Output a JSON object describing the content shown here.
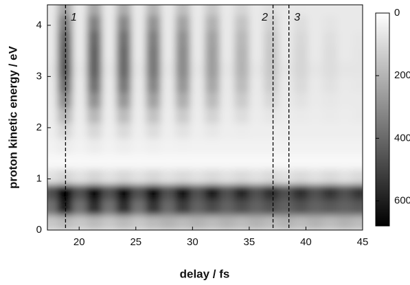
{
  "chart_data": {
    "type": "heatmap",
    "xlabel": "delay / fs",
    "ylabel": "proton kinetic energy / eV",
    "x": [
      17.5,
      18.8,
      20.1,
      21.4,
      22.7,
      24.0,
      25.3,
      26.6,
      27.9,
      29.2,
      30.5,
      31.8,
      33.1,
      34.4,
      35.7,
      37.0,
      38.3,
      39.6,
      40.9,
      42.2,
      43.5,
      44.8
    ],
    "y": [
      0.15,
      0.45,
      0.75,
      1.05,
      1.35,
      1.65,
      1.95,
      2.25,
      2.55,
      2.85,
      3.15,
      3.45,
      3.75,
      4.05,
      4.35
    ],
    "z": [
      [
        150,
        180,
        150,
        180,
        150,
        180,
        150,
        180,
        200,
        180,
        200,
        180,
        200,
        180,
        200,
        180,
        200,
        180,
        200,
        180,
        200,
        180
      ],
      [
        380,
        600,
        380,
        560,
        380,
        560,
        380,
        540,
        400,
        520,
        420,
        480,
        420,
        470,
        420,
        460,
        420,
        460,
        420,
        440,
        420,
        440
      ],
      [
        470,
        680,
        470,
        660,
        470,
        650,
        470,
        640,
        470,
        620,
        470,
        600,
        470,
        580,
        470,
        560,
        470,
        560,
        470,
        540,
        470,
        540
      ],
      [
        80,
        110,
        80,
        110,
        80,
        105,
        80,
        105,
        80,
        100,
        80,
        100,
        80,
        100,
        80,
        100,
        80,
        100,
        80,
        100,
        80,
        100
      ],
      [
        20,
        20,
        20,
        20,
        20,
        20,
        20,
        20,
        20,
        20,
        20,
        20,
        20,
        20,
        20,
        20,
        20,
        20,
        20,
        20,
        20,
        20
      ],
      [
        35,
        52,
        35,
        50,
        35,
        48,
        35,
        43,
        35,
        37,
        35,
        35,
        35,
        35,
        35,
        35,
        35,
        35,
        35,
        35,
        35,
        35
      ],
      [
        45,
        108,
        45,
        105,
        45,
        100,
        45,
        90,
        45,
        78,
        45,
        65,
        45,
        50,
        45,
        45,
        45,
        45,
        45,
        45,
        45,
        45
      ],
      [
        50,
        194,
        50,
        189,
        50,
        180,
        50,
        162,
        50,
        140,
        50,
        117,
        50,
        90,
        50,
        68,
        50,
        55,
        50,
        55,
        50,
        55
      ],
      [
        55,
        301,
        55,
        294,
        55,
        280,
        55,
        252,
        55,
        217,
        55,
        182,
        55,
        140,
        55,
        105,
        55,
        77,
        55,
        63,
        55,
        55
      ],
      [
        60,
        387,
        60,
        378,
        60,
        360,
        60,
        324,
        60,
        279,
        60,
        234,
        60,
        180,
        60,
        135,
        60,
        99,
        60,
        81,
        60,
        63
      ],
      [
        70,
        440,
        70,
        420,
        70,
        400,
        70,
        360,
        70,
        310,
        70,
        260,
        70,
        200,
        70,
        150,
        70,
        110,
        70,
        90,
        70,
        70
      ],
      [
        60,
        430,
        60,
        420,
        60,
        400,
        60,
        360,
        60,
        310,
        60,
        260,
        60,
        200,
        60,
        150,
        60,
        110,
        60,
        90,
        60,
        70
      ],
      [
        60,
        409,
        60,
        399,
        60,
        380,
        60,
        342,
        60,
        295,
        60,
        247,
        60,
        190,
        60,
        143,
        60,
        105,
        60,
        86,
        60,
        66
      ],
      [
        60,
        344,
        60,
        336,
        60,
        320,
        60,
        288,
        60,
        248,
        60,
        208,
        60,
        160,
        60,
        120,
        60,
        88,
        60,
        72,
        60,
        60
      ],
      [
        60,
        237,
        60,
        231,
        60,
        220,
        60,
        198,
        60,
        171,
        60,
        143,
        60,
        110,
        60,
        83,
        60,
        61,
        60,
        60,
        60,
        60
      ]
    ],
    "xlim": [
      17.2,
      45
    ],
    "xticks": [
      20,
      25,
      30,
      35,
      40,
      45
    ],
    "ylim": [
      0,
      4.4
    ],
    "yticks": [
      0,
      1,
      2,
      3,
      4
    ],
    "zlim": [
      0,
      680
    ],
    "zticks": [
      0,
      200,
      400,
      600
    ],
    "annotations": [
      {
        "x": 18.8,
        "label": "1"
      },
      {
        "x": 37.1,
        "label": "2"
      },
      {
        "x": 38.5,
        "label": "3"
      }
    ]
  }
}
